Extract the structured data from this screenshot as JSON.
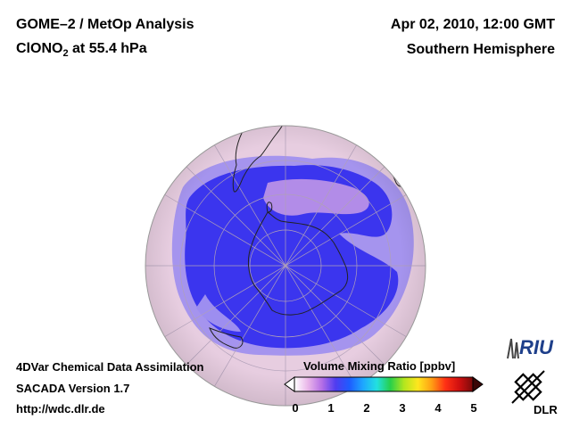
{
  "header": {
    "title_line1": "GOME–2 / MetOp Analysis",
    "species_prefix": "ClONO",
    "species_sub": "2",
    "species_suffix": " at 55.4 hPa",
    "datetime": "Apr 02, 2010, 12:00 GMT",
    "region": "Southern Hemisphere"
  },
  "footer": {
    "line1": "4DVar Chemical Data Assimilation",
    "line2": "SACADA Version 1.7",
    "line3": "http://wdc.dlr.de"
  },
  "colorbar": {
    "title": "Volume Mixing Ratio [ppbv]",
    "ticks": [
      "0",
      "1",
      "2",
      "3",
      "4",
      "5"
    ],
    "min": 0,
    "max": 5,
    "colors": [
      "#ffffff",
      "#e9b5e9",
      "#b46ee6",
      "#4f3cf0",
      "#1e5cff",
      "#1ea7ff",
      "#22e0e0",
      "#27d04a",
      "#b4e61e",
      "#ffe61e",
      "#ff9f14",
      "#ff3014",
      "#d01010",
      "#7a0a0a"
    ]
  },
  "logos": {
    "riu": "RIU",
    "dlr": "DLR"
  },
  "map_colors": {
    "background_field": "#e7cde0",
    "low_ratio_blue": "#3b35ee",
    "mid_ratio_lavender": "#9d8ef0"
  }
}
